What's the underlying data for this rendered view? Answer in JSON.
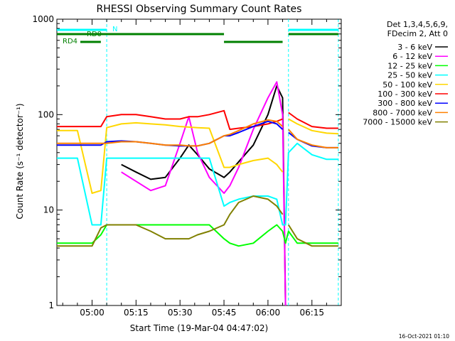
{
  "chart_data": {
    "type": "line",
    "title": "RHESSI Observing Summary Count Rates",
    "xlabel": "Start Time (19-Mar-04 04:47:02)",
    "ylabel": "Count Rate (s⁻¹ detector⁻¹)",
    "y_scale": "log",
    "ylim": [
      1,
      1000
    ],
    "xlim": [
      "04:48",
      "06:25"
    ],
    "x_ticks": [
      "05:00",
      "05:15",
      "05:30",
      "05:45",
      "06:00",
      "06:15"
    ],
    "y_ticks": [
      "1",
      "10",
      "100",
      "1000"
    ],
    "timestamp": "16-Oct-2021 01:10",
    "legend_header": [
      "Det 1,3,4,5,6,9,",
      "FDecim 2, Att 0"
    ],
    "legend_placement": "right",
    "flag_labels": [
      "N",
      "RD0",
      "RD4"
    ],
    "flags": [
      {
        "label": "N",
        "color": "#00ffff",
        "intervals": [
          [
            "04:48",
            "05:05"
          ],
          [
            "06:07",
            "06:24"
          ]
        ]
      },
      {
        "label": "RD0",
        "color": "#008000",
        "intervals": [
          [
            "04:48",
            "05:45"
          ],
          [
            "06:07",
            "06:24"
          ]
        ]
      },
      {
        "label": "RD4",
        "color": "#008000",
        "intervals": [
          [
            "04:56",
            "05:03"
          ],
          [
            "05:45",
            "06:05"
          ]
        ]
      }
    ],
    "dashed_verticals": [
      "05:05",
      "06:07",
      "06:24"
    ],
    "times": [
      "04:48",
      "04:55",
      "05:00",
      "05:03",
      "05:05",
      "05:10",
      "05:15",
      "05:20",
      "05:25",
      "05:30",
      "05:33",
      "05:36",
      "05:40",
      "05:45",
      "05:47",
      "05:50",
      "05:55",
      "06:00",
      "06:03",
      "06:05",
      "06:06",
      "06:07",
      "06:10",
      "06:15",
      "06:20",
      "06:24"
    ],
    "series": [
      {
        "name": "3 - 6 keV",
        "color": "#000000",
        "values": [
          null,
          null,
          null,
          null,
          null,
          30,
          25,
          21,
          22,
          35,
          48,
          38,
          27,
          22,
          25,
          32,
          48,
          100,
          200,
          150,
          1,
          null,
          null,
          null,
          null,
          null
        ]
      },
      {
        "name": "6 - 12 keV",
        "color": "#ff00ff",
        "values": [
          null,
          null,
          null,
          null,
          null,
          25,
          20,
          16,
          18,
          50,
          95,
          40,
          22,
          15,
          18,
          28,
          70,
          150,
          220,
          100,
          1,
          null,
          null,
          null,
          null,
          null
        ]
      },
      {
        "name": "12 - 25 keV",
        "color": "#00ff00",
        "values": [
          4.5,
          4.5,
          4.5,
          5.5,
          7,
          7,
          7,
          7,
          7,
          7,
          7,
          7,
          7,
          5,
          4.5,
          4.2,
          4.5,
          6,
          7,
          6,
          4.5,
          6,
          4.5,
          4.5,
          4.5,
          4.5
        ]
      },
      {
        "name": "25 - 50 keV",
        "color": "#00ffff",
        "values": [
          35,
          35,
          7,
          7,
          35,
          35,
          35,
          35,
          35,
          35,
          35,
          35,
          35,
          11,
          12,
          13,
          14,
          14,
          13,
          7,
          7,
          40,
          50,
          38,
          34,
          34
        ]
      },
      {
        "name": "50 - 100 keV",
        "color": "#ffd700",
        "values": [
          68,
          68,
          15,
          16,
          73,
          80,
          82,
          80,
          78,
          75,
          74,
          73,
          72,
          28,
          28,
          30,
          33,
          35,
          30,
          25,
          null,
          90,
          80,
          68,
          64,
          63
        ]
      },
      {
        "name": "100 - 300 keV",
        "color": "#ff0000",
        "values": [
          75,
          75,
          75,
          75,
          95,
          100,
          100,
          95,
          90,
          90,
          95,
          95,
          100,
          110,
          70,
          72,
          75,
          80,
          85,
          90,
          null,
          105,
          90,
          75,
          72,
          72
        ]
      },
      {
        "name": "300 - 800 keV",
        "color": "#0000ff",
        "values": [
          48,
          48,
          48,
          48,
          52,
          53,
          52,
          50,
          48,
          47,
          47,
          47,
          50,
          60,
          60,
          65,
          75,
          85,
          80,
          70,
          null,
          65,
          55,
          47,
          45,
          45
        ]
      },
      {
        "name": "800 - 7000 keV",
        "color": "#ff8000",
        "values": [
          50,
          50,
          50,
          50,
          50,
          52,
          52,
          50,
          48,
          48,
          47,
          47,
          50,
          60,
          62,
          68,
          80,
          88,
          85,
          75,
          null,
          70,
          55,
          48,
          45,
          45
        ]
      },
      {
        "name": "7000 - 15000 keV",
        "color": "#808000",
        "values": [
          4.2,
          4.2,
          4.2,
          6.5,
          7,
          7,
          7,
          6,
          5,
          5,
          5,
          5.5,
          6,
          7,
          9,
          12,
          14,
          13,
          11,
          9,
          null,
          7,
          5,
          4.2,
          4.2,
          4.2
        ]
      }
    ]
  }
}
